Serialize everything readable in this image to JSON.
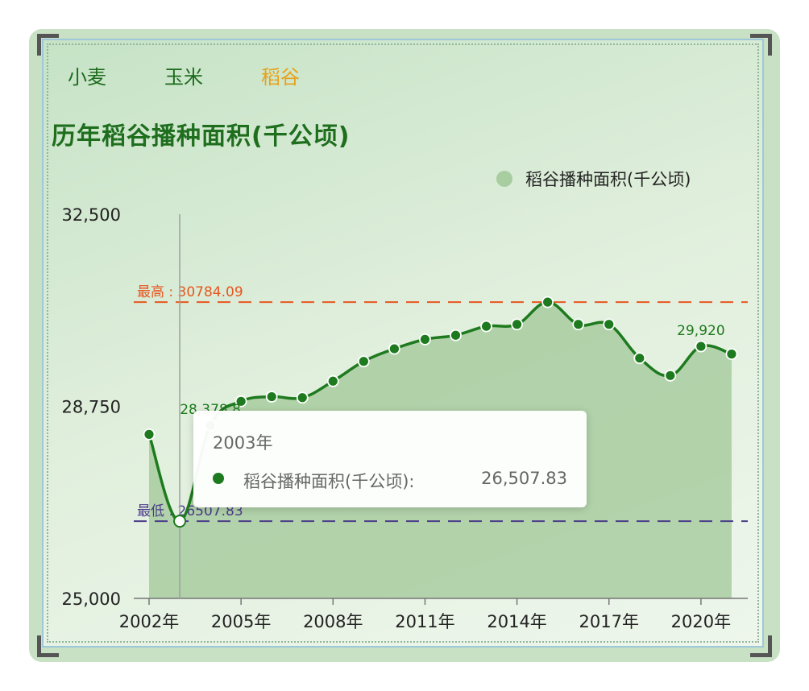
{
  "tabs": [
    {
      "label": "小麦",
      "active": false
    },
    {
      "label": "玉米",
      "active": false
    },
    {
      "label": "稻谷",
      "active": true
    }
  ],
  "colors": {
    "line": "#1e7a1e",
    "area": "#a8cda0",
    "max_line": "#e8561f",
    "min_line": "#4a3c8a",
    "active_tab": "#e7a21a",
    "tab": "#1c6b1c"
  },
  "chart_data": {
    "type": "area",
    "title": "历年稻谷播种面积(千公顷)",
    "legend": {
      "label": "稻谷播种面积(千公顷)",
      "position": "top-right"
    },
    "ylim": [
      25000,
      32500
    ],
    "y_ticks": [
      "32,500",
      "28,750",
      "25,000"
    ],
    "x_ticks": [
      "2002年",
      "2005年",
      "2008年",
      "2011年",
      "2014年",
      "2017年",
      "2020年"
    ],
    "x": [
      "2002年",
      "2003年",
      "2004年",
      "2005年",
      "2006年",
      "2007年",
      "2008年",
      "2009年",
      "2010年",
      "2011年",
      "2012年",
      "2013年",
      "2014年",
      "2015年",
      "2016年",
      "2017年",
      "2018年",
      "2019年",
      "2020年",
      "2021年"
    ],
    "series": [
      {
        "name": "稻谷播种面积(千公顷)",
        "values": [
          28202,
          26507.83,
          28378.8,
          28847,
          28938,
          28919,
          29241,
          29627,
          29873,
          30057,
          30137,
          30312,
          30350,
          30784.09,
          30350,
          30350,
          29690,
          29350,
          29920,
          29770
        ]
      }
    ],
    "mark_lines": [
      {
        "label": "最高 : 30784.09",
        "value": 30784.09
      },
      {
        "label": "最低 : 26507.83",
        "value": 26507.83
      }
    ],
    "data_labels": [
      {
        "text": "28,378.8",
        "index": 2
      },
      {
        "text": "29,920",
        "index": 18
      }
    ],
    "hover_index": 1
  },
  "tooltip": {
    "title": "2003年",
    "series_name": "稻谷播种面积(千公顷):",
    "value": "26,507.83"
  }
}
